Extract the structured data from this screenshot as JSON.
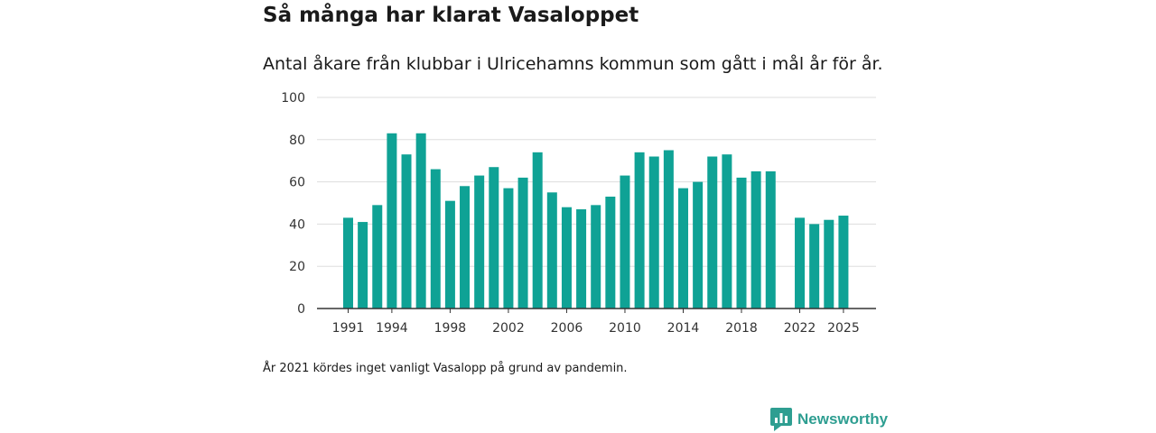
{
  "header": {
    "title": "Så många har klarat Vasaloppet",
    "subtitle": "Antal åkare från klubbar i Ulricehamns kommun som gått i mål år för år."
  },
  "footnote": "År 2021 kördes inget vanligt Vasalopp på grund av pandemin.",
  "brand": {
    "name": "Newsworthy",
    "color": "#2e9e91",
    "icon": "newsworthy-logo-icon"
  },
  "colors": {
    "bar": "#0fa295",
    "grid": "#dddddd",
    "axis": "#333333"
  },
  "chart_data": {
    "type": "bar",
    "title": "Så många har klarat Vasaloppet",
    "xlabel": "",
    "ylabel": "",
    "ylim": [
      0,
      100
    ],
    "yticks": [
      0,
      20,
      40,
      60,
      80,
      100
    ],
    "xticks": [
      1991,
      1994,
      1998,
      2002,
      2006,
      2010,
      2014,
      2018,
      2022,
      2025
    ],
    "categories": [
      1991,
      1992,
      1993,
      1994,
      1995,
      1996,
      1997,
      1998,
      1999,
      2000,
      2001,
      2002,
      2003,
      2004,
      2005,
      2006,
      2007,
      2008,
      2009,
      2010,
      2011,
      2012,
      2013,
      2014,
      2015,
      2016,
      2017,
      2018,
      2019,
      2020,
      2021,
      2022,
      2023,
      2024,
      2025
    ],
    "values": [
      43,
      41,
      49,
      83,
      73,
      83,
      66,
      51,
      58,
      63,
      67,
      57,
      62,
      74,
      55,
      48,
      47,
      49,
      53,
      63,
      74,
      72,
      75,
      57,
      60,
      72,
      73,
      62,
      65,
      65,
      null,
      43,
      40,
      42,
      44
    ],
    "grid": true,
    "legend": "none"
  }
}
